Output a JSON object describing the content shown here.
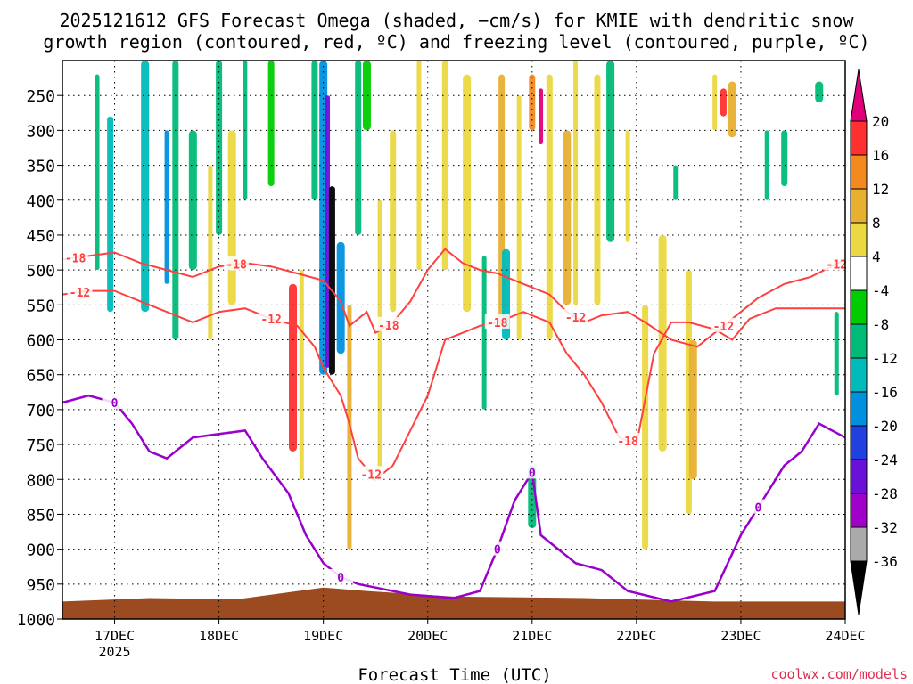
{
  "title_line1": "2025121612 GFS Forecast Omega (shaded, −cm/s) for KMIE with dendritic snow",
  "title_line2": "growth region (contoured, red, ºC) and freezing level (contoured, purple, ºC)",
  "credit": "coolwx.com/models",
  "colors": {
    "snow_contour": "#ff4040",
    "freezing_contour": "#9900cc",
    "ground": "#9c4a20",
    "grid": "#000000"
  },
  "chart_data": {
    "type": "heatmap",
    "title": "2025121612 GFS Forecast Omega (shaded, −cm/s) for KMIE with dendritic snow growth region (contoured, red, ºC) and freezing level (contoured, purple, ºC)",
    "xlabel": "Forecast Time (UTC)",
    "ylabel": "Pressure (hPa)",
    "x_ticks": [
      {
        "label": "17DEC",
        "sub": "2025",
        "hour": 12
      },
      {
        "label": "18DEC",
        "sub": "",
        "hour": 36
      },
      {
        "label": "19DEC",
        "sub": "",
        "hour": 60
      },
      {
        "label": "20DEC",
        "sub": "",
        "hour": 84
      },
      {
        "label": "21DEC",
        "sub": "",
        "hour": 108
      },
      {
        "label": "22DEC",
        "sub": "",
        "hour": 132
      },
      {
        "label": "23DEC",
        "sub": "",
        "hour": 156
      },
      {
        "label": "24DEC",
        "sub": "",
        "hour": 180
      }
    ],
    "xlim": [
      0,
      180
    ],
    "y_ticks": [
      "250",
      "300",
      "350",
      "400",
      "450",
      "500",
      "550",
      "600",
      "650",
      "700",
      "750",
      "800",
      "850",
      "900",
      "950",
      "1000"
    ],
    "ylim": [
      1000,
      200
    ],
    "colorbar": {
      "labels": [
        "20",
        "16",
        "12",
        "8",
        "4",
        "-4",
        "-8",
        "-12",
        "-16",
        "-20",
        "-24",
        "-28",
        "-32",
        "-36"
      ],
      "bins": [
        {
          "v": 24,
          "color": "#e0007a"
        },
        {
          "v": 20,
          "color": "#ff3030"
        },
        {
          "v": 16,
          "color": "#f28a20"
        },
        {
          "v": 12,
          "color": "#e8b030"
        },
        {
          "v": 8,
          "color": "#ecd840"
        },
        {
          "v": 4,
          "color": "#ffffff"
        },
        {
          "v": -4,
          "color": "#00cc00"
        },
        {
          "v": -8,
          "color": "#00bb77"
        },
        {
          "v": -12,
          "color": "#00bbbb"
        },
        {
          "v": -16,
          "color": "#0090e0"
        },
        {
          "v": -20,
          "color": "#2040e0"
        },
        {
          "v": -24,
          "color": "#6a10d8"
        },
        {
          "v": -28,
          "color": "#a000c8"
        },
        {
          "v": -32,
          "color": "#aaaaaa"
        },
        {
          "v": -36,
          "color": "#000000"
        }
      ]
    },
    "contour_labels": {
      "snow": [
        "-18",
        "-12",
        "-18",
        "-12",
        "-18",
        "-12",
        "-12",
        "-18",
        "-12",
        "-18",
        "-12"
      ],
      "freezing": [
        "0",
        "0",
        "0",
        "0",
        "0"
      ]
    },
    "features": {
      "omega_shading": [
        {
          "hour": 8,
          "p_top": 220,
          "p_bot": 500,
          "v": -8
        },
        {
          "hour": 11,
          "p_top": 280,
          "p_bot": 560,
          "v": -12
        },
        {
          "hour": 19,
          "p_top": 200,
          "p_bot": 560,
          "v": -12
        },
        {
          "hour": 24,
          "p_top": 300,
          "p_bot": 520,
          "v": -16
        },
        {
          "hour": 26,
          "p_top": 200,
          "p_bot": 600,
          "v": -8
        },
        {
          "hour": 30,
          "p_top": 300,
          "p_bot": 500,
          "v": -8
        },
        {
          "hour": 34,
          "p_top": 350,
          "p_bot": 600,
          "v": 8
        },
        {
          "hour": 36,
          "p_top": 200,
          "p_bot": 450,
          "v": -8
        },
        {
          "hour": 39,
          "p_top": 300,
          "p_bot": 550,
          "v": 8
        },
        {
          "hour": 42,
          "p_top": 200,
          "p_bot": 400,
          "v": -8
        },
        {
          "hour": 48,
          "p_top": 200,
          "p_bot": 380,
          "v": -4
        },
        {
          "hour": 53,
          "p_top": 520,
          "p_bot": 760,
          "v": 20
        },
        {
          "hour": 55,
          "p_top": 500,
          "p_bot": 800,
          "v": 8
        },
        {
          "hour": 58,
          "p_top": 200,
          "p_bot": 400,
          "v": -8
        },
        {
          "hour": 60,
          "p_top": 200,
          "p_bot": 650,
          "v": -16
        },
        {
          "hour": 61,
          "p_top": 250,
          "p_bot": 640,
          "v": -24
        },
        {
          "hour": 62,
          "p_top": 380,
          "p_bot": 650,
          "v": -36
        },
        {
          "hour": 64,
          "p_top": 460,
          "p_bot": 620,
          "v": -16
        },
        {
          "hour": 66,
          "p_top": 550,
          "p_bot": 900,
          "v": 12
        },
        {
          "hour": 68,
          "p_top": 200,
          "p_bot": 450,
          "v": -8
        },
        {
          "hour": 70,
          "p_top": 200,
          "p_bot": 300,
          "v": -4
        },
        {
          "hour": 73,
          "p_top": 400,
          "p_bot": 800,
          "v": 8
        },
        {
          "hour": 76,
          "p_top": 300,
          "p_bot": 560,
          "v": 8
        },
        {
          "hour": 79,
          "p_top": 200,
          "p_bot": 380,
          "v": 4
        },
        {
          "hour": 82,
          "p_top": 200,
          "p_bot": 500,
          "v": 8
        },
        {
          "hour": 88,
          "p_top": 200,
          "p_bot": 500,
          "v": 8
        },
        {
          "hour": 93,
          "p_top": 220,
          "p_bot": 560,
          "v": 8
        },
        {
          "hour": 97,
          "p_top": 480,
          "p_bot": 700,
          "v": -8
        },
        {
          "hour": 101,
          "p_top": 220,
          "p_bot": 580,
          "v": 12
        },
        {
          "hour": 102,
          "p_top": 470,
          "p_bot": 600,
          "v": -12
        },
        {
          "hour": 105,
          "p_top": 250,
          "p_bot": 600,
          "v": 8
        },
        {
          "hour": 108,
          "p_top": 220,
          "p_bot": 300,
          "v": 16
        },
        {
          "hour": 108,
          "p_top": 780,
          "p_bot": 870,
          "v": -8
        },
        {
          "hour": 110,
          "p_top": 240,
          "p_bot": 320,
          "v": 24
        },
        {
          "hour": 112,
          "p_top": 220,
          "p_bot": 600,
          "v": 8
        },
        {
          "hour": 116,
          "p_top": 300,
          "p_bot": 550,
          "v": 12
        },
        {
          "hour": 118,
          "p_top": 200,
          "p_bot": 550,
          "v": 8
        },
        {
          "hour": 123,
          "p_top": 220,
          "p_bot": 550,
          "v": 8
        },
        {
          "hour": 126,
          "p_top": 200,
          "p_bot": 460,
          "v": -8
        },
        {
          "hour": 130,
          "p_top": 300,
          "p_bot": 460,
          "v": 8
        },
        {
          "hour": 134,
          "p_top": 550,
          "p_bot": 900,
          "v": 8
        },
        {
          "hour": 138,
          "p_top": 450,
          "p_bot": 760,
          "v": 8
        },
        {
          "hour": 141,
          "p_top": 350,
          "p_bot": 400,
          "v": -8
        },
        {
          "hour": 144,
          "p_top": 500,
          "p_bot": 850,
          "v": 8
        },
        {
          "hour": 145,
          "p_top": 600,
          "p_bot": 800,
          "v": 12
        },
        {
          "hour": 150,
          "p_top": 220,
          "p_bot": 300,
          "v": 8
        },
        {
          "hour": 152,
          "p_top": 240,
          "p_bot": 280,
          "v": 20
        },
        {
          "hour": 154,
          "p_top": 230,
          "p_bot": 310,
          "v": 12
        },
        {
          "hour": 162,
          "p_top": 300,
          "p_bot": 400,
          "v": -8
        },
        {
          "hour": 166,
          "p_top": 300,
          "p_bot": 380,
          "v": -8
        },
        {
          "hour": 174,
          "p_top": 230,
          "p_bot": 260,
          "v": -8
        },
        {
          "hour": 178,
          "p_top": 560,
          "p_bot": 680,
          "v": -8
        }
      ],
      "snow_minus18_p": [
        [
          0,
          485
        ],
        [
          6,
          480
        ],
        [
          12,
          475
        ],
        [
          18,
          490
        ],
        [
          24,
          500
        ],
        [
          30,
          510
        ],
        [
          36,
          495
        ],
        [
          42,
          490
        ],
        [
          48,
          495
        ],
        [
          54,
          505
        ],
        [
          60,
          515
        ],
        [
          64,
          545
        ],
        [
          66,
          580
        ],
        [
          70,
          560
        ],
        [
          72,
          590
        ],
        [
          76,
          575
        ],
        [
          80,
          545
        ],
        [
          84,
          500
        ],
        [
          88,
          470
        ],
        [
          92,
          490
        ],
        [
          96,
          500
        ],
        [
          100,
          505
        ],
        [
          106,
          520
        ],
        [
          112,
          535
        ],
        [
          116,
          560
        ],
        [
          120,
          575
        ],
        [
          124,
          565
        ],
        [
          130,
          560
        ],
        [
          134,
          575
        ],
        [
          140,
          600
        ],
        [
          146,
          610
        ],
        [
          152,
          580
        ],
        [
          156,
          560
        ],
        [
          160,
          540
        ],
        [
          166,
          520
        ],
        [
          172,
          510
        ],
        [
          180,
          485
        ]
      ],
      "snow_minus12_p": [
        [
          0,
          535
        ],
        [
          6,
          530
        ],
        [
          12,
          530
        ],
        [
          18,
          545
        ],
        [
          24,
          560
        ],
        [
          30,
          575
        ],
        [
          36,
          560
        ],
        [
          42,
          555
        ],
        [
          48,
          570
        ],
        [
          54,
          580
        ],
        [
          58,
          610
        ],
        [
          60,
          640
        ],
        [
          64,
          680
        ],
        [
          66,
          720
        ],
        [
          68,
          770
        ],
        [
          72,
          800
        ],
        [
          76,
          780
        ],
        [
          80,
          730
        ],
        [
          84,
          680
        ],
        [
          86,
          640
        ],
        [
          88,
          600
        ],
        [
          92,
          590
        ],
        [
          96,
          580
        ],
        [
          100,
          575
        ],
        [
          106,
          560
        ],
        [
          112,
          575
        ],
        [
          116,
          620
        ],
        [
          120,
          650
        ],
        [
          124,
          690
        ],
        [
          128,
          740
        ],
        [
          132,
          750
        ],
        [
          136,
          620
        ],
        [
          140,
          575
        ],
        [
          144,
          575
        ],
        [
          150,
          585
        ],
        [
          154,
          600
        ],
        [
          158,
          570
        ],
        [
          164,
          555
        ],
        [
          172,
          555
        ],
        [
          180,
          555
        ]
      ],
      "freezing_0_p": [
        [
          0,
          690
        ],
        [
          6,
          680
        ],
        [
          12,
          690
        ],
        [
          16,
          720
        ],
        [
          20,
          760
        ],
        [
          24,
          770
        ],
        [
          30,
          740
        ],
        [
          36,
          735
        ],
        [
          42,
          730
        ],
        [
          46,
          770
        ],
        [
          52,
          820
        ],
        [
          56,
          880
        ],
        [
          60,
          920
        ],
        [
          64,
          940
        ],
        [
          68,
          950
        ],
        [
          72,
          955
        ],
        [
          80,
          965
        ],
        [
          90,
          970
        ],
        [
          96,
          960
        ],
        [
          100,
          900
        ],
        [
          104,
          830
        ],
        [
          108,
          790
        ],
        [
          110,
          880
        ],
        [
          114,
          900
        ],
        [
          118,
          920
        ],
        [
          124,
          930
        ],
        [
          130,
          960
        ],
        [
          140,
          975
        ],
        [
          150,
          960
        ],
        [
          156,
          880
        ],
        [
          160,
          840
        ],
        [
          166,
          780
        ],
        [
          170,
          760
        ],
        [
          174,
          720
        ],
        [
          180,
          740
        ]
      ],
      "ground_p": [
        [
          0,
          975
        ],
        [
          20,
          970
        ],
        [
          40,
          972
        ],
        [
          60,
          955
        ],
        [
          70,
          960
        ],
        [
          90,
          968
        ],
        [
          120,
          970
        ],
        [
          150,
          975
        ],
        [
          180,
          975
        ]
      ]
    }
  }
}
